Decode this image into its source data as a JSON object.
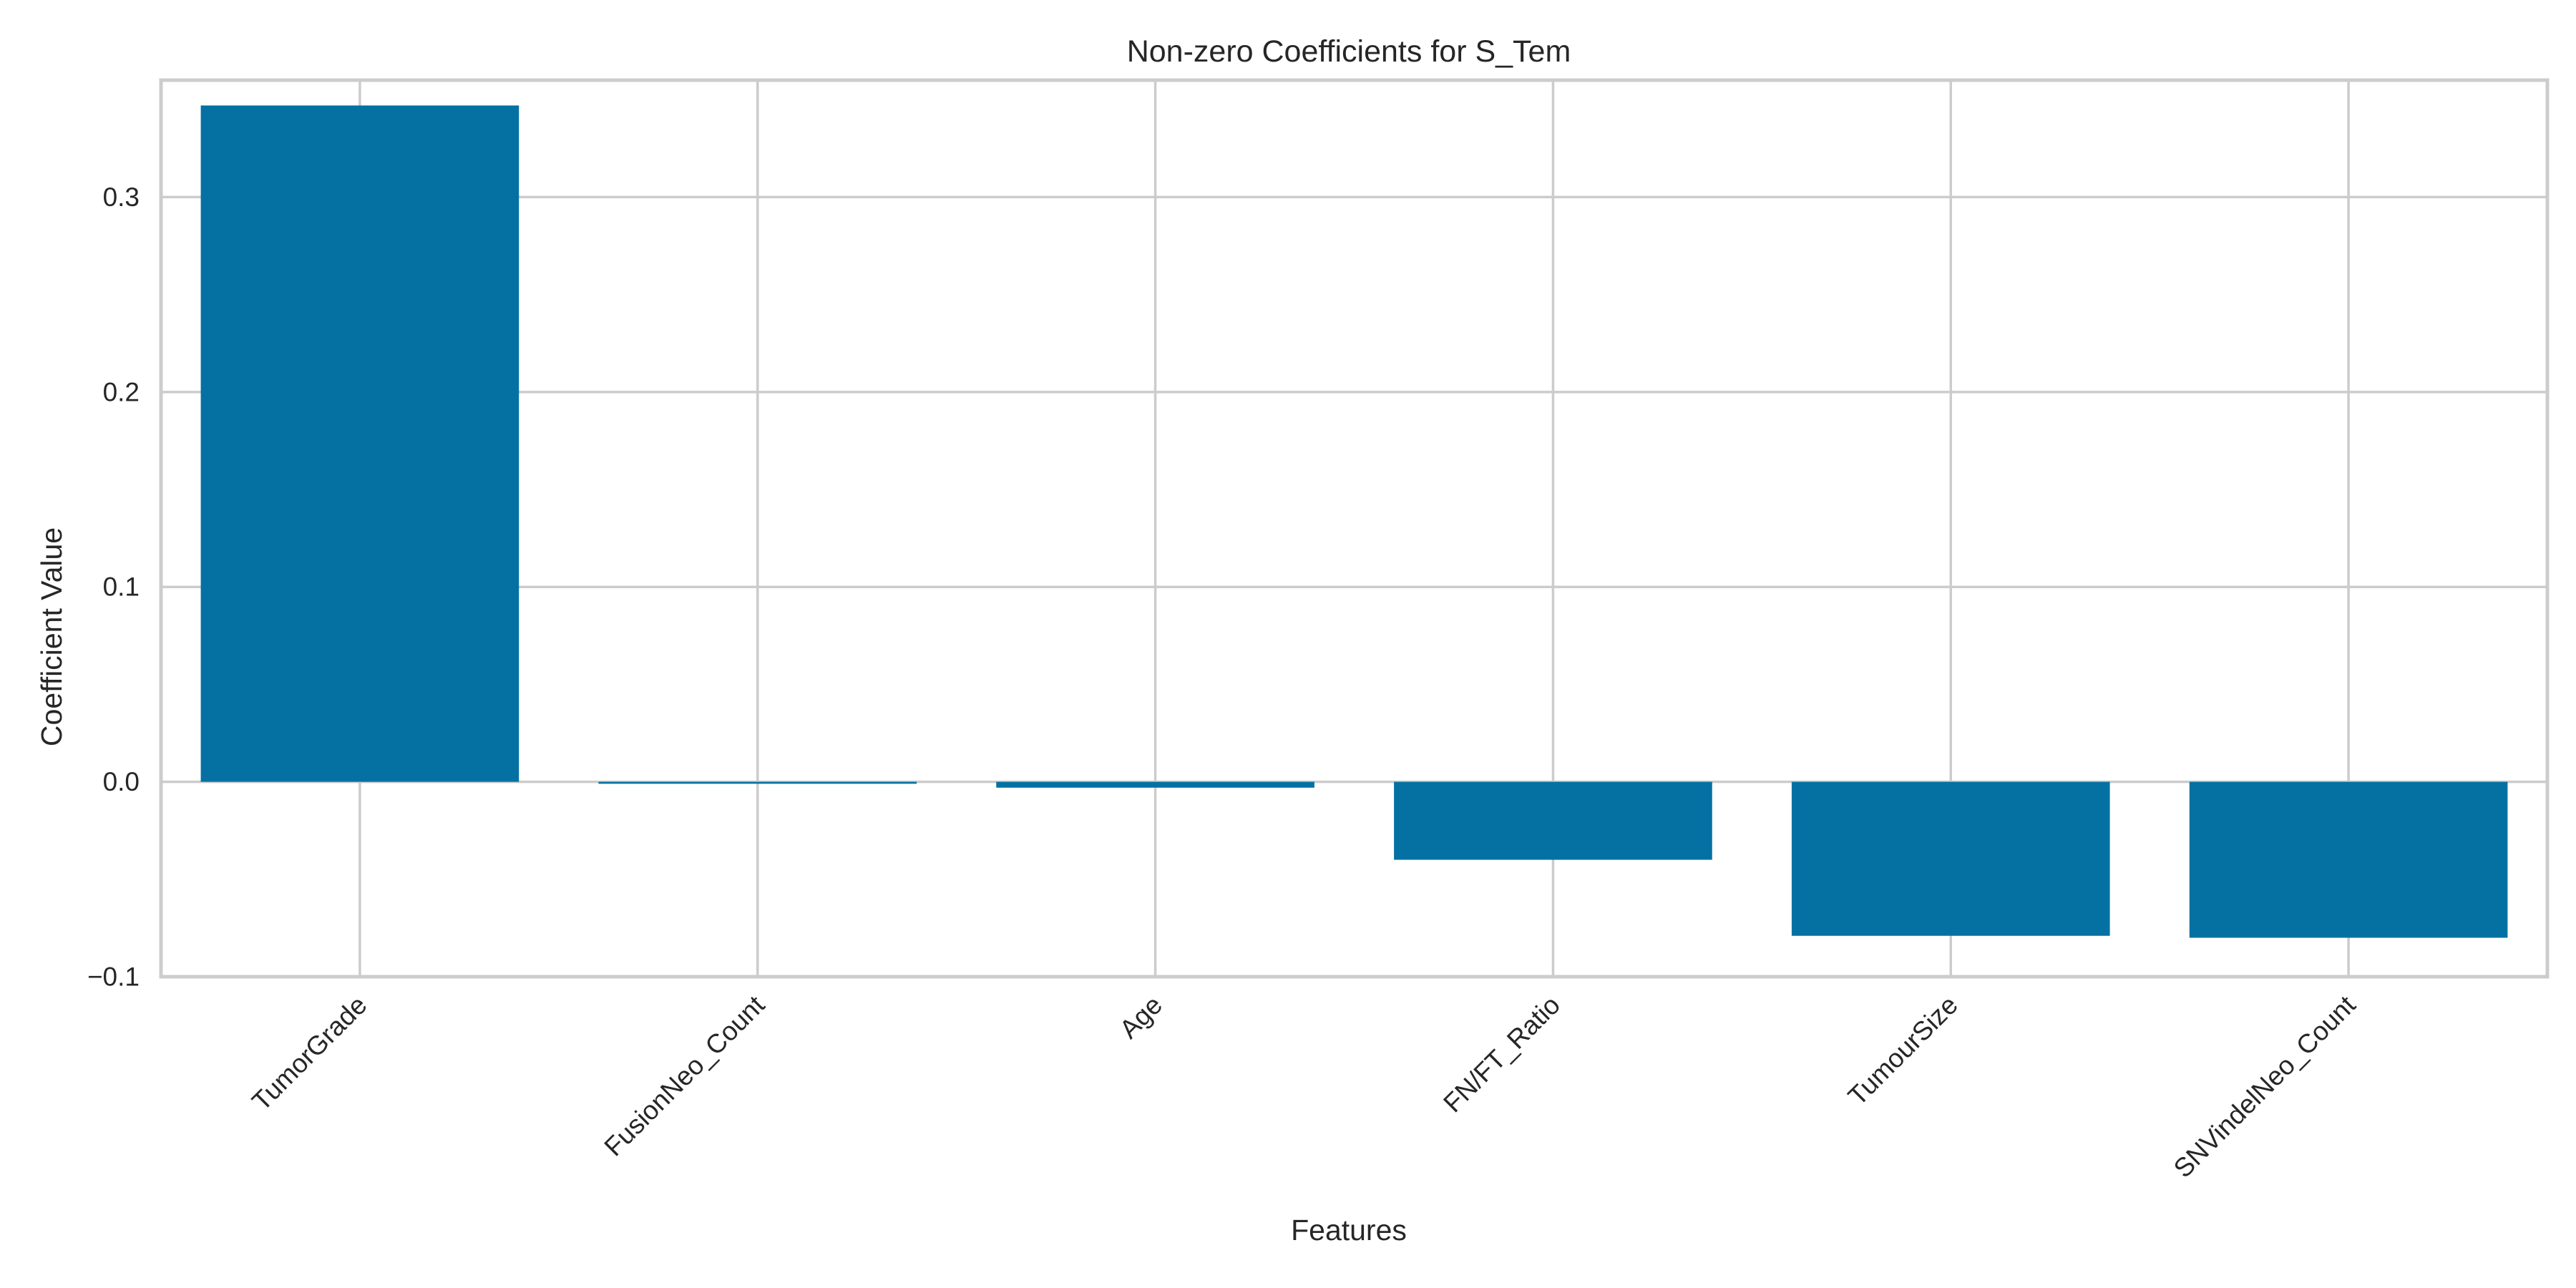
{
  "chart_data": {
    "type": "bar",
    "title": "Non-zero Coefficients for S_Tem",
    "xlabel": "Features",
    "ylabel": "Coefficient Value",
    "categories": [
      "TumorGrade",
      "FusionNeo_Count",
      "Age",
      "FN/FT_Ratio",
      "TumourSize",
      "SNVindelNeo_Count"
    ],
    "values": [
      0.347,
      -0.001,
      -0.003,
      -0.04,
      -0.079,
      -0.08
    ],
    "ylim": [
      -0.1,
      0.36
    ],
    "yticks": [
      -0.1,
      0.0,
      0.1,
      0.2,
      0.3
    ],
    "ytick_labels": [
      "−0.1",
      "0.0",
      "0.1",
      "0.2",
      "0.3"
    ],
    "grid": true,
    "bar_color": "#0571a3",
    "grid_color": "#cccccc"
  }
}
